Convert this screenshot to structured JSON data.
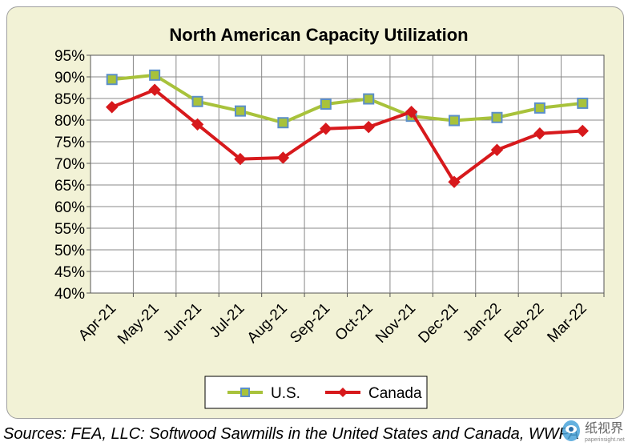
{
  "source_note": "Sources: FEA, LLC: Softwood Sawmills in the United States and Canada, WWPA",
  "colors": {
    "frame_bg": "#f2f2d6",
    "plot_bg": "#ffffff",
    "us_line": "#a8c23b",
    "us_marker": "#5b8fc9",
    "canada": "#d7191c",
    "grid": "#888888"
  },
  "watermark": {
    "text": "纸视界",
    "subtext": "paperinsight.net"
  },
  "chart_data": {
    "type": "line",
    "title": "North American Capacity Utilization",
    "xlabel": "",
    "ylabel": "",
    "categories": [
      "Apr-21",
      "May-21",
      "Jun-21",
      "Jul-21",
      "Aug-21",
      "Sep-21",
      "Oct-21",
      "Nov-21",
      "Dec-21",
      "Jan-22",
      "Feb-22",
      "Mar-22"
    ],
    "ylim": [
      40,
      95
    ],
    "yticks": [
      40,
      45,
      50,
      55,
      60,
      65,
      70,
      75,
      80,
      85,
      90,
      95
    ],
    "ytick_suffix": "%",
    "grid": true,
    "legend_position": "bottom",
    "series": [
      {
        "name": "U.S.",
        "marker": "square",
        "values": [
          89.4,
          90.4,
          84.3,
          82.1,
          79.4,
          83.7,
          84.9,
          80.9,
          79.9,
          80.6,
          82.8,
          83.9
        ]
      },
      {
        "name": "Canada",
        "marker": "diamond",
        "values": [
          83.0,
          87.0,
          79.0,
          71.0,
          71.3,
          78.0,
          78.4,
          81.9,
          65.7,
          73.1,
          76.9,
          77.5
        ]
      }
    ]
  }
}
